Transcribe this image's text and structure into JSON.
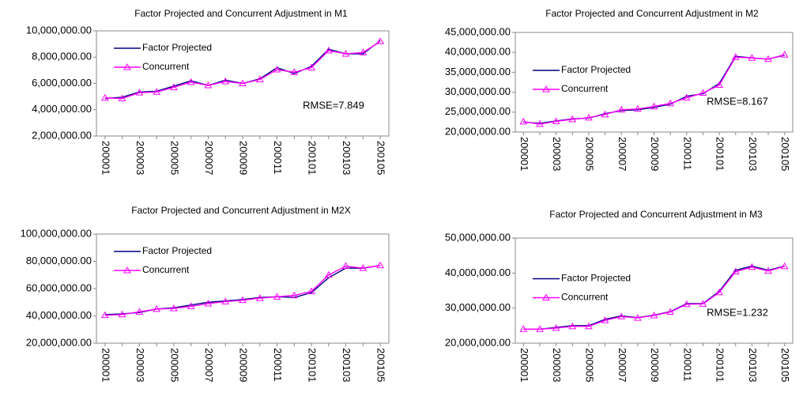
{
  "chart_data": [
    {
      "type": "line",
      "title": "Factor Projected and Concurrent Adjustment in M1",
      "categories": [
        "200001",
        null,
        "200003",
        null,
        "200005",
        null,
        "200007",
        null,
        "200009",
        null,
        "200011",
        null,
        "200101",
        null,
        "200103",
        null,
        "200105"
      ],
      "series": [
        {
          "name": "Factor Projected",
          "color": "#000080",
          "values": [
            4850000,
            4950000,
            5350000,
            5400000,
            5800000,
            6200000,
            5850000,
            6250000,
            6000000,
            6350000,
            7200000,
            6750000,
            7300000,
            8600000,
            8250000,
            8250000,
            9250000
          ]
        },
        {
          "name": "Concurrent",
          "color": "#ff00ff",
          "marker": "triangle",
          "values": [
            4900000,
            4850000,
            5300000,
            5350000,
            5700000,
            6100000,
            5850000,
            6150000,
            6000000,
            6300000,
            7050000,
            6850000,
            7200000,
            8500000,
            8250000,
            8350000,
            9200000
          ]
        }
      ],
      "ylim": [
        2000000,
        10000000
      ],
      "yticks": [
        {
          "value": 2000000,
          "label": "2,000,000.00"
        },
        {
          "value": 4000000,
          "label": "4,000,000.00"
        },
        {
          "value": 6000000,
          "label": "6,000,000.00"
        },
        {
          "value": 8000000,
          "label": "8,000,000.00"
        },
        {
          "value": 10000000,
          "label": "10,000,000.00"
        }
      ],
      "legend": "upper left",
      "annotation": "RMSE=7.849"
    },
    {
      "type": "line",
      "title": "Factor Projected and Concurrent Adjustment in M2",
      "categories": [
        "200001",
        null,
        "200003",
        null,
        "200005",
        null,
        "200007",
        null,
        "200009",
        null,
        "200011",
        null,
        "200101",
        null,
        "200103",
        null,
        "200105"
      ],
      "series": [
        {
          "name": "Factor Projected",
          "color": "#000080",
          "values": [
            22500000,
            22200000,
            22800000,
            23300000,
            23500000,
            24600000,
            25400000,
            25600000,
            26200000,
            27000000,
            29000000,
            29600000,
            32200000,
            39000000,
            38600000,
            38300000,
            39300000
          ]
        },
        {
          "name": "Concurrent",
          "color": "#ff00ff",
          "marker": "triangle",
          "values": [
            22600000,
            22000000,
            22700000,
            23200000,
            23600000,
            24400000,
            25600000,
            25800000,
            26400000,
            27200000,
            28600000,
            29800000,
            31800000,
            38800000,
            38600000,
            38300000,
            39400000
          ]
        }
      ],
      "ylim": [
        20000000,
        45000000
      ],
      "yticks": [
        {
          "value": 20000000,
          "label": "20,000,000.00"
        },
        {
          "value": 25000000,
          "label": "25,000,000.00"
        },
        {
          "value": 30000000,
          "label": "30,000,000.00"
        },
        {
          "value": 35000000,
          "label": "35,000,000.00"
        },
        {
          "value": 40000000,
          "label": "40,000,000.00"
        },
        {
          "value": 45000000,
          "label": "45,000,000.00"
        }
      ],
      "legend": "center left",
      "annotation": "RMSE=8.167"
    },
    {
      "type": "line",
      "title": "Factor Projected and Concurrent Adjustment in M2X",
      "categories": [
        "200001",
        null,
        "200003",
        null,
        "200005",
        null,
        "200007",
        null,
        "200009",
        null,
        "200011",
        null,
        "200101",
        null,
        "200103",
        null,
        "200105"
      ],
      "series": [
        {
          "name": "Factor Projected",
          "color": "#000080",
          "values": [
            41000000,
            41500000,
            42500000,
            45000000,
            46000000,
            48000000,
            50000000,
            51000000,
            52000000,
            53500000,
            54000000,
            53500000,
            57000000,
            68000000,
            75000000,
            75000000,
            77000000
          ]
        },
        {
          "name": "Concurrent",
          "color": "#ff00ff",
          "marker": "triangle",
          "values": [
            40500000,
            41000000,
            43000000,
            45000000,
            45500000,
            47000000,
            49000000,
            50500000,
            51500000,
            53000000,
            54000000,
            55000000,
            58000000,
            70000000,
            76500000,
            75000000,
            77000000
          ]
        }
      ],
      "ylim": [
        20000000,
        100000000
      ],
      "yticks": [
        {
          "value": 20000000,
          "label": "20,000,000.00"
        },
        {
          "value": 40000000,
          "label": "40,000,000.00"
        },
        {
          "value": 60000000,
          "label": "60,000,000.00"
        },
        {
          "value": 80000000,
          "label": "80,000,000.00"
        },
        {
          "value": 100000000,
          "label": "100,000,000.00"
        }
      ],
      "legend": "upper left"
    },
    {
      "type": "line",
      "title": "Factor Projected and Concurrent Adjustment in M3",
      "categories": [
        "200001",
        null,
        "200003",
        null,
        "200005",
        null,
        "200007",
        null,
        "200009",
        null,
        "200011",
        null,
        "200101",
        null,
        "200103",
        null,
        "200105"
      ],
      "series": [
        {
          "name": "Factor Projected",
          "color": "#000080",
          "values": [
            24000000,
            24000000,
            24500000,
            25000000,
            25000000,
            26800000,
            27800000,
            27300000,
            28000000,
            29000000,
            31300000,
            31300000,
            34800000,
            40800000,
            42000000,
            40800000,
            42000000
          ]
        },
        {
          "name": "Concurrent",
          "color": "#ff00ff",
          "marker": "triangle",
          "values": [
            24000000,
            24000000,
            24300000,
            24800000,
            24800000,
            26500000,
            27600000,
            27200000,
            27900000,
            28900000,
            31100000,
            31200000,
            34500000,
            40400000,
            41700000,
            40600000,
            41900000
          ]
        }
      ],
      "ylim": [
        20000000,
        50000000
      ],
      "yticks": [
        {
          "value": 20000000,
          "label": "20,000,000.00"
        },
        {
          "value": 30000000,
          "label": "30,000,000.00"
        },
        {
          "value": 40000000,
          "label": "40,000,000.00"
        },
        {
          "value": 50000000,
          "label": "50,000,000.00"
        }
      ],
      "legend": "center left",
      "annotation": "RMSE=1.232"
    }
  ]
}
